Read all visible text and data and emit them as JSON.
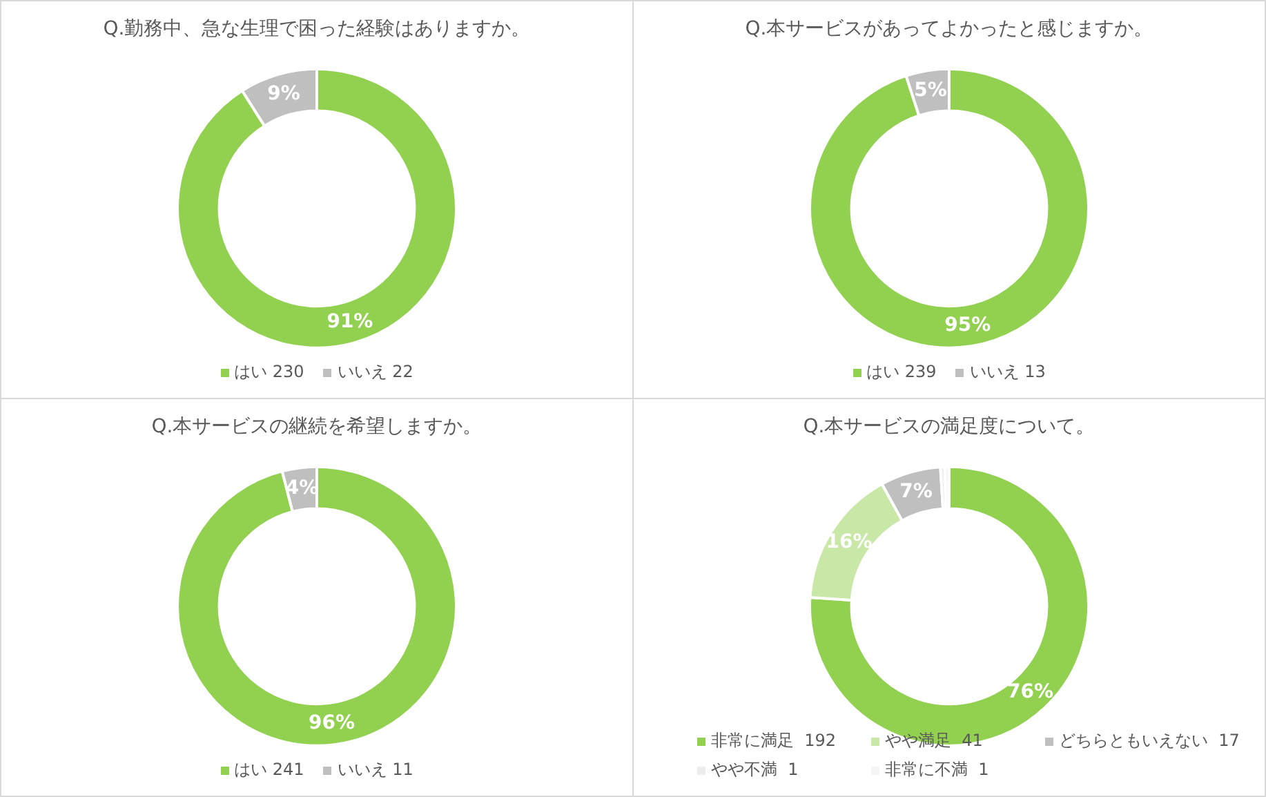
{
  "chart_data": [
    {
      "type": "donut",
      "title": "Q.勤務中、急な生理で困った経験はありますか。",
      "categories": [
        "はい 230",
        "いいえ 22"
      ],
      "values": [
        91,
        9
      ],
      "colors": [
        "#92d050",
        "#bfbfbf"
      ],
      "value_labels": [
        "91%",
        "9%"
      ],
      "legend": "bottom"
    },
    {
      "type": "donut",
      "title": "Q.本サービスがあってよかったと感じますか。",
      "categories": [
        "はい 239",
        "いいえ 13"
      ],
      "values": [
        95,
        5
      ],
      "colors": [
        "#92d050",
        "#bfbfbf"
      ],
      "value_labels": [
        "95%",
        "5%"
      ],
      "legend": "bottom"
    },
    {
      "type": "donut",
      "title": "Q.本サービスの継続を希望しますか。",
      "categories": [
        "はい 241",
        "いいえ 11"
      ],
      "values": [
        96,
        4
      ],
      "colors": [
        "#92d050",
        "#bfbfbf"
      ],
      "value_labels": [
        "96%",
        "4%"
      ],
      "legend": "bottom"
    },
    {
      "type": "donut",
      "title": "Q.本サービスの満足度について。",
      "categories": [
        "非常に満足  192",
        "やや満足  41",
        "どちらともいえない  17",
        "やや不満  1",
        "非常に不満  1"
      ],
      "values": [
        76,
        16,
        7,
        0.5,
        0.5
      ],
      "colors": [
        "#92d050",
        "#c9e7a7",
        "#bfbfbf",
        "#ededed",
        "#f5f5f5"
      ],
      "value_labels": [
        "76%",
        "16%",
        "7%",
        null,
        null
      ],
      "legend": "bottom"
    }
  ]
}
